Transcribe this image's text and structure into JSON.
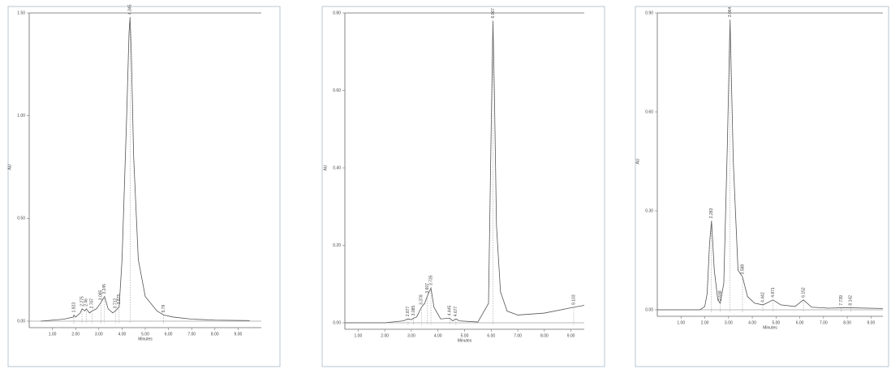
{
  "chart_data": [
    {
      "type": "line",
      "x_label": "Minutes",
      "y_label": "AU",
      "color": "#555555",
      "xlim": [
        0,
        10
      ],
      "xticks": [
        {
          "value": 1,
          "label": "1.00"
        },
        {
          "value": 2,
          "label": "2.00"
        },
        {
          "value": 3,
          "label": "3.00"
        },
        {
          "value": 4,
          "label": "4.00"
        },
        {
          "value": 5,
          "label": "5.00"
        },
        {
          "value": 6,
          "label": "6.00"
        },
        {
          "value": 7,
          "label": "7.00"
        },
        {
          "value": 8,
          "label": "8.00"
        },
        {
          "value": 9,
          "label": "9.00"
        }
      ],
      "ylim": [
        0,
        1.5
      ],
      "yticks": [
        {
          "value": 0,
          "label": "0.00"
        },
        {
          "value": 0.5,
          "label": "0.50"
        },
        {
          "value": 1,
          "label": "1.00"
        },
        {
          "value": 1.5,
          "label": "1.50"
        }
      ],
      "x": [
        0.5,
        1.5,
        1.9,
        1.923,
        2.0,
        2.2,
        2.275,
        2.4,
        2.46,
        2.6,
        2.707,
        2.9,
        3.085,
        3.245,
        3.4,
        3.6,
        3.712,
        3.8,
        3.875,
        4.0,
        4.2,
        4.3,
        4.345,
        4.4,
        4.5,
        4.7,
        5.0,
        5.5,
        5.79,
        6.2,
        7,
        8,
        9.5
      ],
      "values": [
        0.0,
        0.01,
        0.02,
        0.03,
        0.02,
        0.04,
        0.06,
        0.05,
        0.06,
        0.04,
        0.05,
        0.06,
        0.09,
        0.12,
        0.06,
        0.04,
        0.05,
        0.06,
        0.07,
        0.3,
        1.0,
        1.4,
        1.48,
        1.3,
        0.8,
        0.3,
        0.12,
        0.05,
        0.03,
        0.02,
        0.01,
        0.005,
        0.003
      ],
      "peaks": [
        1.923,
        2.275,
        2.46,
        2.707,
        3.085,
        3.245,
        3.712,
        3.875,
        4.345,
        5.79
      ]
    },
    {
      "type": "line",
      "x_label": "Minutes",
      "y_label": "AU",
      "color": "#555555",
      "xlim": [
        0.5,
        9.5
      ],
      "xticks": [
        {
          "value": 1,
          "label": "1.00"
        },
        {
          "value": 2,
          "label": "2.00"
        },
        {
          "value": 3,
          "label": "3.00"
        },
        {
          "value": 4,
          "label": "4.00"
        },
        {
          "value": 5,
          "label": "5.00"
        },
        {
          "value": 6,
          "label": "6.00"
        },
        {
          "value": 7,
          "label": "7.00"
        },
        {
          "value": 8,
          "label": "8.00"
        },
        {
          "value": 9,
          "label": "9.00"
        }
      ],
      "ylim": [
        0,
        0.8
      ],
      "yticks": [
        {
          "value": 0,
          "label": "0.00"
        },
        {
          "value": 0.2,
          "label": "0.20"
        },
        {
          "value": 0.4,
          "label": "0.40"
        },
        {
          "value": 0.6,
          "label": "0.60"
        },
        {
          "value": 0.8,
          "label": "0.80"
        }
      ],
      "x": [
        0.5,
        2.0,
        2.7,
        2.877,
        3.0,
        3.085,
        3.2,
        3.378,
        3.5,
        3.607,
        3.735,
        3.85,
        4.1,
        4.445,
        4.55,
        4.677,
        4.8,
        5.5,
        5.9,
        6.0,
        6.067,
        6.12,
        6.2,
        6.35,
        6.6,
        7.0,
        8.0,
        9.103,
        9.5
      ],
      "values": [
        0.0,
        0.0,
        0.005,
        0.01,
        0.008,
        0.012,
        0.015,
        0.04,
        0.05,
        0.07,
        0.09,
        0.04,
        0.01,
        0.012,
        0.005,
        0.01,
        0.005,
        0.002,
        0.05,
        0.5,
        0.78,
        0.6,
        0.25,
        0.08,
        0.03,
        0.02,
        0.025,
        0.04,
        0.045
      ],
      "peaks": [
        2.877,
        3.085,
        3.378,
        3.607,
        3.735,
        4.445,
        4.677,
        6.067,
        9.103
      ]
    },
    {
      "type": "line",
      "x_label": "Minutes",
      "y_label": "AU",
      "color": "#555555",
      "xlim": [
        0,
        9.5
      ],
      "xticks": [
        {
          "value": 1,
          "label": "1.00"
        },
        {
          "value": 2,
          "label": "2.00"
        },
        {
          "value": 3,
          "label": "3.00"
        },
        {
          "value": 4,
          "label": "4.00"
        },
        {
          "value": 5,
          "label": "5.00"
        },
        {
          "value": 6,
          "label": "6.00"
        },
        {
          "value": 7,
          "label": "7.00"
        },
        {
          "value": 8,
          "label": "8.00"
        },
        {
          "value": 9,
          "label": "9.00"
        }
      ],
      "ylim": [
        0,
        0.9
      ],
      "yticks": [
        {
          "value": 0,
          "label": "0.00"
        },
        {
          "value": 0.3,
          "label": "0.30"
        },
        {
          "value": 0.6,
          "label": "0.60"
        },
        {
          "value": 0.9,
          "label": "0.90"
        }
      ],
      "x": [
        0,
        1.8,
        2.0,
        2.1,
        2.2,
        2.283,
        2.4,
        2.55,
        2.648,
        2.8,
        2.95,
        3.064,
        3.2,
        3.4,
        3.588,
        3.8,
        4.1,
        4.442,
        4.6,
        4.871,
        5.2,
        5.8,
        6.152,
        6.5,
        7.2,
        7.739,
        8.142,
        9.5
      ],
      "values": [
        0.0,
        0.0,
        0.01,
        0.05,
        0.2,
        0.27,
        0.12,
        0.03,
        0.02,
        0.08,
        0.5,
        0.88,
        0.45,
        0.12,
        0.1,
        0.04,
        0.02,
        0.015,
        0.02,
        0.03,
        0.015,
        0.01,
        0.03,
        0.008,
        0.005,
        0.006,
        0.006,
        0.004
      ],
      "peaks": [
        2.283,
        2.648,
        3.064,
        3.588,
        4.442,
        4.871,
        6.152,
        7.739,
        8.142
      ]
    }
  ]
}
